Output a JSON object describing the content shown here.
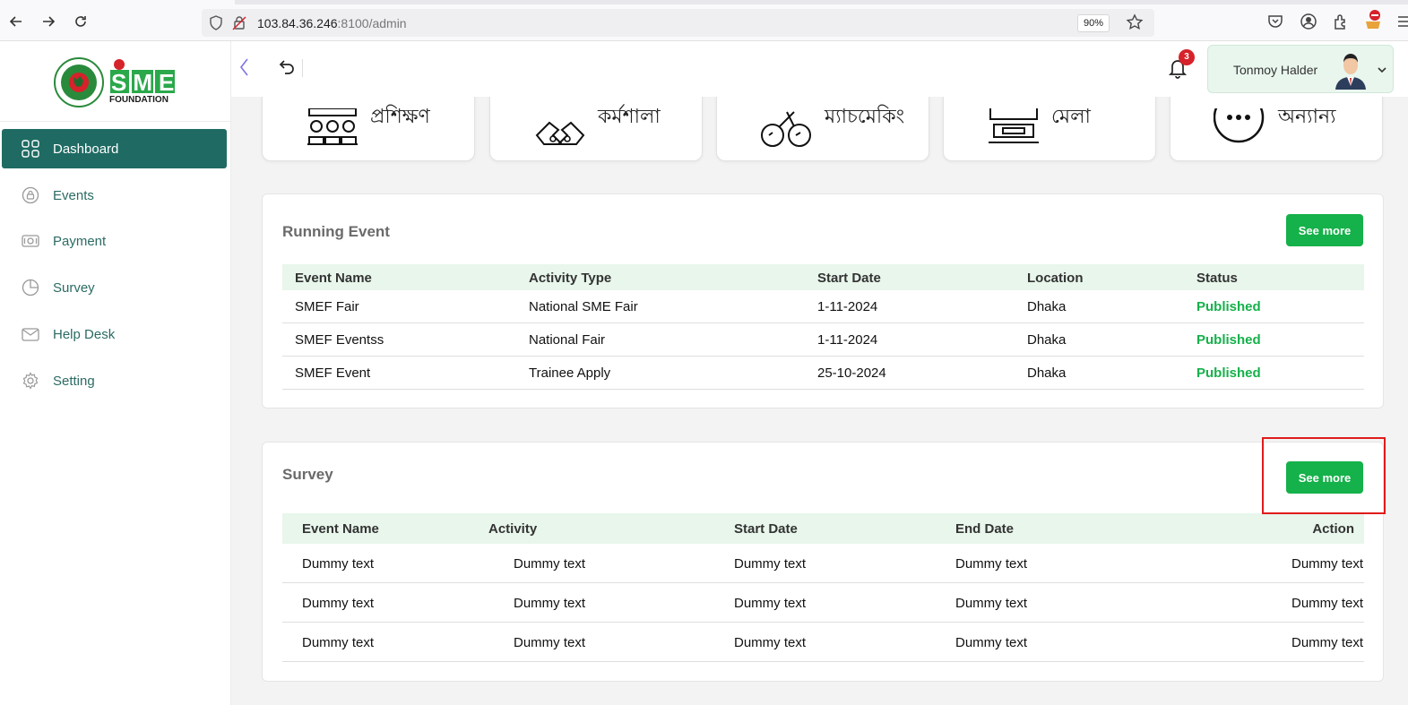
{
  "browser": {
    "url_host": "103.84.36.246",
    "url_rest": ":8100/admin",
    "zoom": "90%"
  },
  "sidebar": {
    "logo_text": "SME",
    "logo_sub": "FOUNDATION",
    "items": [
      {
        "label": "Dashboard",
        "icon": "grid-icon",
        "active": true
      },
      {
        "label": "Events",
        "icon": "events-icon",
        "active": false
      },
      {
        "label": "Payment",
        "icon": "payment-icon",
        "active": false
      },
      {
        "label": "Survey",
        "icon": "pie-chart-icon",
        "active": false
      },
      {
        "label": "Help Desk",
        "icon": "envelope-icon",
        "active": false
      },
      {
        "label": "Setting",
        "icon": "gear-icon",
        "active": false
      }
    ]
  },
  "topbar": {
    "notification_count": "3",
    "user_name": "Tonmoy Halder"
  },
  "categories": [
    {
      "label": "প্রশিক্ষণ",
      "icon": "training-icon"
    },
    {
      "label": "কর্মশালা",
      "icon": "workshop-icon"
    },
    {
      "label": "ম্যাচমেকিং",
      "icon": "matchmaking-icon"
    },
    {
      "label": "মেলা",
      "icon": "fair-icon"
    },
    {
      "label": "অন্যান্য",
      "icon": "more-icon"
    }
  ],
  "running_event": {
    "title": "Running Event",
    "see_more": "See more",
    "columns": [
      "Event Name",
      "Activity Type",
      "Start Date",
      "Location",
      "Status"
    ],
    "rows": [
      [
        "SMEF Fair",
        "National SME Fair",
        "1-11-2024",
        "Dhaka",
        "Published"
      ],
      [
        "SMEF Eventss",
        "National Fair",
        "1-11-2024",
        "Dhaka",
        "Published"
      ],
      [
        "SMEF Event",
        "Trainee Apply",
        "25-10-2024",
        "Dhaka",
        "Published"
      ]
    ]
  },
  "survey": {
    "title": "Survey",
    "see_more": "See more",
    "columns": [
      "Event Name",
      "Activity",
      "Start Date",
      "End Date",
      "Action"
    ],
    "rows": [
      [
        "Dummy text",
        "Dummy text",
        "Dummy text",
        "Dummy text",
        "Dummy text"
      ],
      [
        "Dummy text",
        "Dummy text",
        "Dummy text",
        "Dummy text",
        "Dummy text"
      ],
      [
        "Dummy text",
        "Dummy text",
        "Dummy text",
        "Dummy text",
        "Dummy text"
      ]
    ]
  },
  "colors": {
    "primary": "#1f6b63",
    "success": "#15b14a",
    "highlight": "#e11b1b"
  }
}
